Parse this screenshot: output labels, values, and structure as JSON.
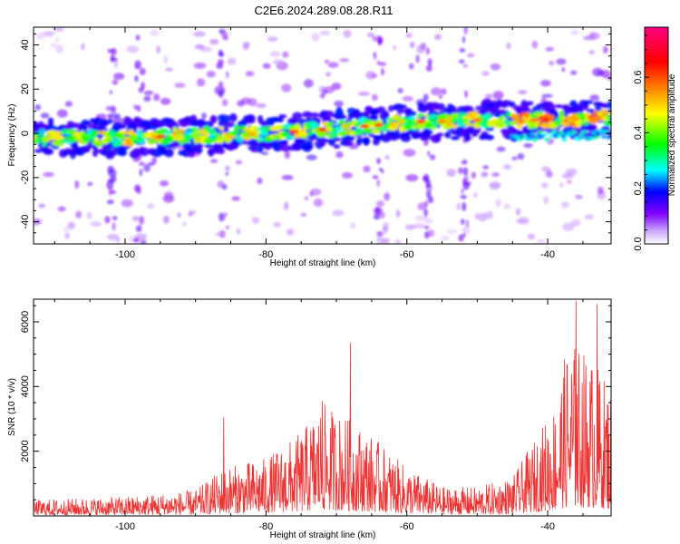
{
  "title": "C2E6.2024.289.08.28.R11",
  "chart_data": [
    {
      "type": "heatmap",
      "xlabel": "Height of straight line (km)",
      "ylabel": "Frequency (Hz)",
      "xlim": [
        -113,
        -31
      ],
      "ylim": [
        -50,
        48
      ],
      "x_ticks": [
        -100,
        -80,
        -60,
        -40
      ],
      "y_ticks": [
        -40,
        -20,
        0,
        20,
        40
      ],
      "grid": false,
      "ridge": {
        "description_points": [
          {
            "x": -113,
            "y": -2
          },
          {
            "x": -100,
            "y": -2
          },
          {
            "x": -90,
            "y": -1
          },
          {
            "x": -80,
            "y": 0
          },
          {
            "x": -70,
            "y": 2
          },
          {
            "x": -60,
            "y": 5
          },
          {
            "x": -50,
            "y": 6
          },
          {
            "x": -40,
            "y": 6
          },
          {
            "x": -31,
            "y": 7
          }
        ]
      },
      "colorbar": {
        "label": "Normalized spectral amplitude",
        "ticks": [
          0.0,
          0.2,
          0.4,
          0.6
        ],
        "tick_labels": [
          "0.0",
          "0.2",
          "0.4",
          "0.6"
        ],
        "range": [
          0,
          0.78
        ],
        "colors": [
          "#ffffff",
          "#8000ff",
          "#0000ff",
          "#00ffff",
          "#00ff00",
          "#ffff00",
          "#ff8000",
          "#ff0000",
          "#ff0080"
        ]
      }
    },
    {
      "type": "line",
      "xlabel": "Height of straight line (km)",
      "ylabel": "SNR (10 * v/v)",
      "xlim": [
        -113,
        -31
      ],
      "ylim": [
        0,
        6700
      ],
      "x_ticks": [
        -100,
        -80,
        -60,
        -40
      ],
      "y_ticks": [
        2000,
        4000,
        6000
      ],
      "grid": false,
      "color": "#ee3333",
      "envelope": [
        {
          "x": -113,
          "y": 500
        },
        {
          "x": -100,
          "y": 600
        },
        {
          "x": -95,
          "y": 700
        },
        {
          "x": -90,
          "y": 800
        },
        {
          "x": -86,
          "y": 1500
        },
        {
          "x": -80,
          "y": 1800
        },
        {
          "x": -75,
          "y": 2600
        },
        {
          "x": -72,
          "y": 3500
        },
        {
          "x": -68,
          "y": 3000
        },
        {
          "x": -65,
          "y": 2500
        },
        {
          "x": -60,
          "y": 1500
        },
        {
          "x": -55,
          "y": 900
        },
        {
          "x": -50,
          "y": 900
        },
        {
          "x": -45,
          "y": 1200
        },
        {
          "x": -42,
          "y": 2300
        },
        {
          "x": -39,
          "y": 3500
        },
        {
          "x": -37,
          "y": 5500
        },
        {
          "x": -34,
          "y": 5000
        },
        {
          "x": -31,
          "y": 4000
        }
      ],
      "peaks": [
        {
          "x": -86,
          "y": 3050
        },
        {
          "x": -72,
          "y": 3550
        },
        {
          "x": -68,
          "y": 5350
        },
        {
          "x": -36,
          "y": 6650
        },
        {
          "x": -33,
          "y": 6550
        }
      ]
    }
  ]
}
